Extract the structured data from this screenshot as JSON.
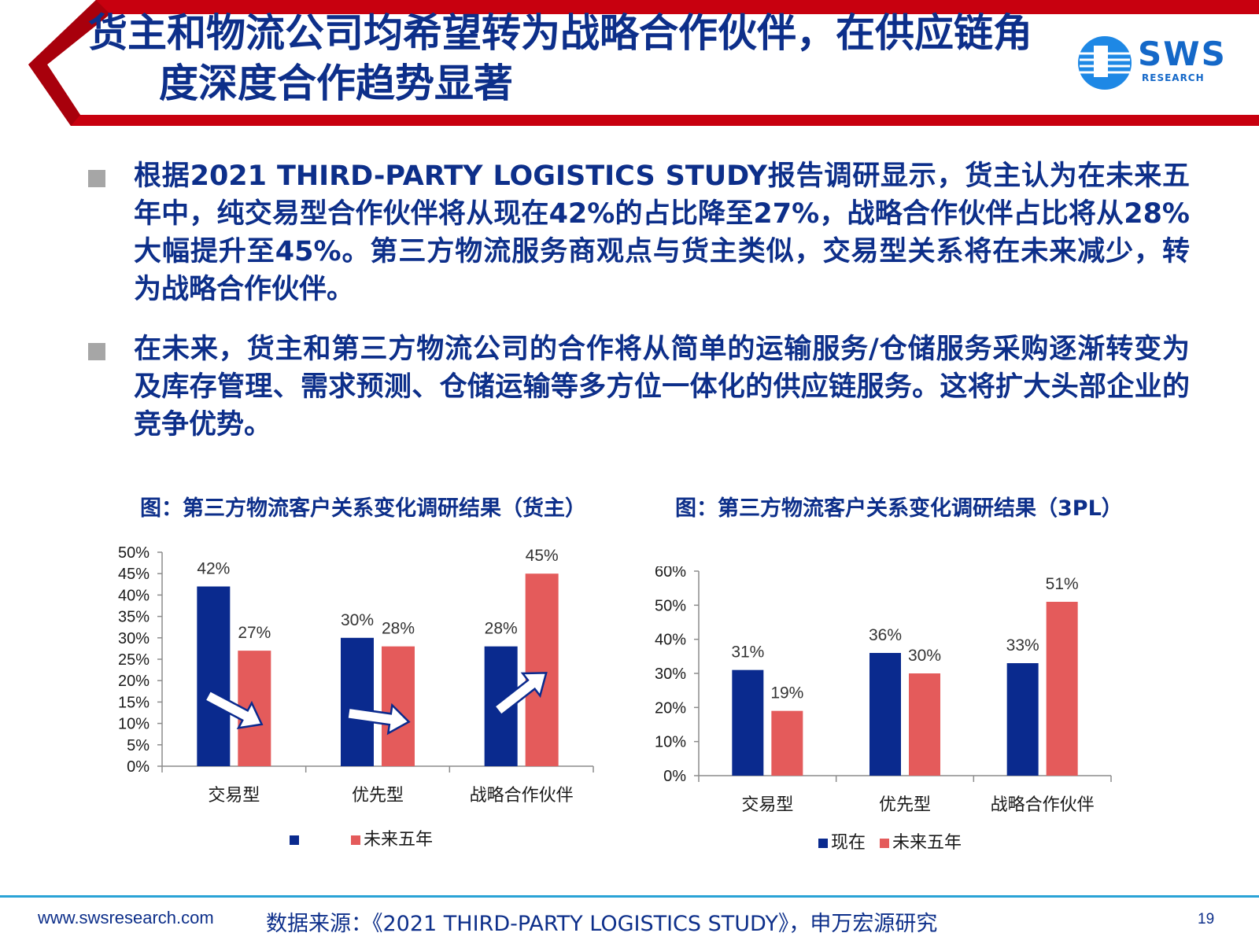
{
  "header": {
    "title_line1": "货主和物流公司均希望转为战略合作伙伴，在供应链角",
    "title_line2": "度深度合作趋势显著"
  },
  "logo": {
    "text": "SWS",
    "sub": "RESEARCH"
  },
  "bullets": [
    "根据2021 THIRD-PARTY LOGISTICS STUDY报告调研显示，货主认为在未来五年中，纯交易型合作伙伴将从现在42%的占比降至27%，战略合作伙伴占比将从28%大幅提升至45%。第三方物流服务商观点与货主类似，交易型关系将在未来减少，转为战略合作伙伴。",
    "在未来，货主和第三方物流公司的合作将从简单的运输服务/仓储服务采购逐渐转变为及库存管理、需求预测、仓储运输等多方位一体化的供应链服务。这将扩大头部企业的竞争优势。"
  ],
  "chart_titles": {
    "shipper": "图：第三方物流客户关系变化调研结果（货主）",
    "tpl": "图：第三方物流客户关系变化调研结果（3PL）"
  },
  "colors": {
    "now": "#0a2a8e",
    "future": "#e45b5b",
    "title": "#0d2f8a",
    "header_red": "#c8000f"
  },
  "chart_data": [
    {
      "type": "bar",
      "title": "图：第三方物流客户关系变化调研结果（货主）",
      "categories": [
        "交易型",
        "优先型",
        "战略合作伙伴"
      ],
      "series": [
        {
          "name": "",
          "values": [
            42,
            30,
            28
          ]
        },
        {
          "name": "未来五年",
          "values": [
            27,
            28,
            45
          ]
        }
      ],
      "ylim": [
        0,
        50
      ],
      "yticks": [
        "0%",
        "5%",
        "10%",
        "15%",
        "20%",
        "25%",
        "30%",
        "35%",
        "40%",
        "45%",
        "50%"
      ],
      "data_labels": [
        [
          "42%",
          "30%",
          "28%"
        ],
        [
          "27%",
          "28%",
          "45%"
        ]
      ],
      "annotations": "white arrows over each category showing direction of change",
      "legend": "bottom",
      "grid": false
    },
    {
      "type": "bar",
      "title": "图：第三方物流客户关系变化调研结果（3PL）",
      "categories": [
        "交易型",
        "优先型",
        "战略合作伙伴"
      ],
      "series": [
        {
          "name": "现在",
          "values": [
            31,
            36,
            33
          ]
        },
        {
          "name": "未来五年",
          "values": [
            19,
            30,
            51
          ]
        }
      ],
      "ylim": [
        0,
        60
      ],
      "yticks": [
        "0%",
        "10%",
        "20%",
        "30%",
        "40%",
        "50%",
        "60%"
      ],
      "data_labels": [
        [
          "31%",
          "36%",
          "33%"
        ],
        [
          "19%",
          "30%",
          "51%"
        ]
      ],
      "legend": "bottom",
      "grid": false
    }
  ],
  "footer": {
    "url": "www.swsresearch.com",
    "source": "数据来源：《2021 THIRD-PARTY LOGISTICS STUDY》，申万宏源研究",
    "page": "19"
  }
}
